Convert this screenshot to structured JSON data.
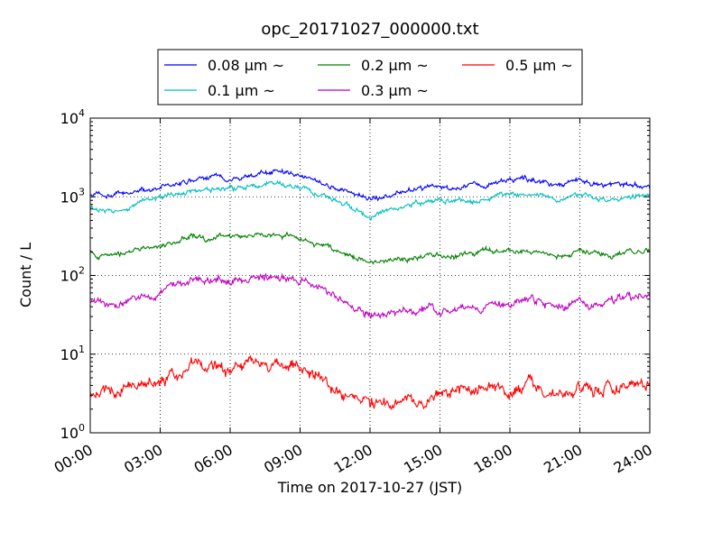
{
  "chart_data": {
    "type": "line",
    "title": "opc_20171027_000000.txt",
    "xlabel": "Time on 2017-10-27 (JST)",
    "ylabel": "Count / L",
    "yscale": "log",
    "ylim": [
      1,
      10000
    ],
    "xlim": [
      "00:00",
      "24:00"
    ],
    "x_ticks": [
      "00:00",
      "03:00",
      "06:00",
      "09:00",
      "12:00",
      "15:00",
      "18:00",
      "21:00",
      "24:00"
    ],
    "y_ticks": [
      {
        "base": "10",
        "exp": "0"
      },
      {
        "base": "10",
        "exp": "1"
      },
      {
        "base": "10",
        "exp": "2"
      },
      {
        "base": "10",
        "exp": "3"
      },
      {
        "base": "10",
        "exp": "4"
      }
    ],
    "grid": true,
    "legend_position": "top",
    "x_hours": [
      0,
      1,
      2,
      3,
      4,
      4.5,
      5,
      6,
      7,
      8,
      9,
      10,
      11,
      12,
      13,
      14,
      15,
      16,
      17,
      18,
      19,
      20,
      21,
      22,
      23,
      24
    ],
    "series": [
      {
        "name": "0.08 μm ~",
        "color": "#0000ff",
        "values": [
          1050,
          1000,
          1150,
          1300,
          1500,
          1600,
          1700,
          1750,
          1900,
          2100,
          1900,
          1500,
          1200,
          900,
          1100,
          1300,
          1350,
          1300,
          1400,
          1700,
          1600,
          1400,
          1600,
          1400,
          1400,
          1400
        ]
      },
      {
        "name": "0.1 μm ~",
        "color": "#00bfbf",
        "values": [
          700,
          680,
          800,
          950,
          1100,
          1200,
          1250,
          1250,
          1400,
          1450,
          1300,
          1000,
          800,
          600,
          700,
          850,
          900,
          900,
          950,
          1100,
          1050,
          900,
          1100,
          950,
          950,
          1000
        ]
      },
      {
        "name": "0.2 μm ~",
        "color": "#008000",
        "values": [
          190,
          180,
          200,
          240,
          290,
          330,
          300,
          310,
          320,
          340,
          300,
          230,
          180,
          150,
          160,
          170,
          180,
          180,
          200,
          200,
          190,
          180,
          200,
          190,
          200,
          210
        ]
      },
      {
        "name": "0.3 μm ~",
        "color": "#bf00bf",
        "values": [
          45,
          43,
          50,
          60,
          80,
          100,
          90,
          90,
          95,
          100,
          90,
          70,
          40,
          33,
          33,
          35,
          37,
          37,
          42,
          45,
          47,
          40,
          43,
          43,
          50,
          55
        ]
      },
      {
        "name": "0.5 μm ~",
        "color": "#ff0000",
        "values": [
          3.2,
          3.5,
          4.0,
          4.8,
          6.0,
          8.0,
          7.0,
          6.5,
          7.0,
          7.5,
          6.5,
          4.5,
          3.0,
          2.5,
          2.6,
          2.7,
          3.0,
          3.0,
          3.5,
          4.0,
          4.0,
          3.5,
          3.5,
          3.5,
          4.0,
          4.0
        ]
      }
    ]
  }
}
